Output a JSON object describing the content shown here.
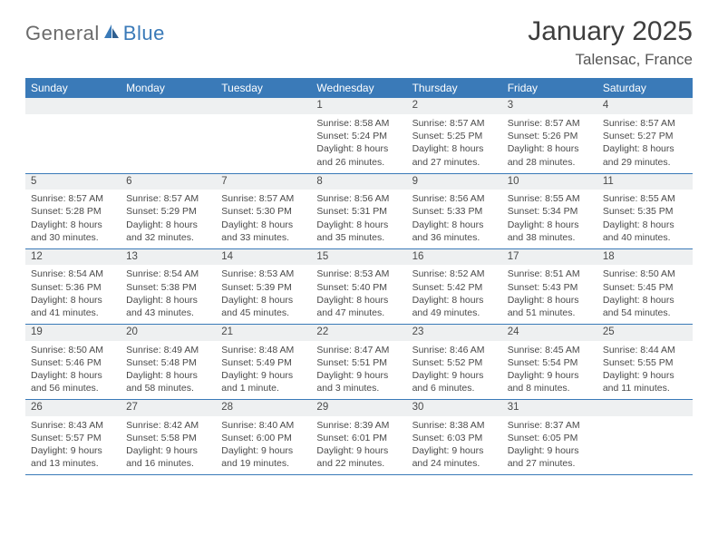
{
  "brand": {
    "text1": "General",
    "text2": "Blue"
  },
  "title": "January 2025",
  "location": "Talensac, France",
  "colors": {
    "header_bg": "#3a7ab8",
    "header_text": "#ffffff",
    "daynum_bg": "#eef0f1",
    "border": "#3a7ab8",
    "body_text": "#4a4a4a",
    "logo_gray": "#6b6b6b",
    "logo_blue": "#3a7ab8",
    "page_bg": "#ffffff"
  },
  "typography": {
    "title_fontsize": 30,
    "location_fontsize": 17,
    "dayheader_fontsize": 12,
    "daynum_fontsize": 11.5,
    "detail_fontsize": 10.5,
    "logo_fontsize": 22
  },
  "day_headers": [
    "Sunday",
    "Monday",
    "Tuesday",
    "Wednesday",
    "Thursday",
    "Friday",
    "Saturday"
  ],
  "weeks": [
    [
      null,
      null,
      null,
      {
        "n": "1",
        "sr": "8:58 AM",
        "ss": "5:24 PM",
        "dl": "8 hours and 26 minutes."
      },
      {
        "n": "2",
        "sr": "8:57 AM",
        "ss": "5:25 PM",
        "dl": "8 hours and 27 minutes."
      },
      {
        "n": "3",
        "sr": "8:57 AM",
        "ss": "5:26 PM",
        "dl": "8 hours and 28 minutes."
      },
      {
        "n": "4",
        "sr": "8:57 AM",
        "ss": "5:27 PM",
        "dl": "8 hours and 29 minutes."
      }
    ],
    [
      {
        "n": "5",
        "sr": "8:57 AM",
        "ss": "5:28 PM",
        "dl": "8 hours and 30 minutes."
      },
      {
        "n": "6",
        "sr": "8:57 AM",
        "ss": "5:29 PM",
        "dl": "8 hours and 32 minutes."
      },
      {
        "n": "7",
        "sr": "8:57 AM",
        "ss": "5:30 PM",
        "dl": "8 hours and 33 minutes."
      },
      {
        "n": "8",
        "sr": "8:56 AM",
        "ss": "5:31 PM",
        "dl": "8 hours and 35 minutes."
      },
      {
        "n": "9",
        "sr": "8:56 AM",
        "ss": "5:33 PM",
        "dl": "8 hours and 36 minutes."
      },
      {
        "n": "10",
        "sr": "8:55 AM",
        "ss": "5:34 PM",
        "dl": "8 hours and 38 minutes."
      },
      {
        "n": "11",
        "sr": "8:55 AM",
        "ss": "5:35 PM",
        "dl": "8 hours and 40 minutes."
      }
    ],
    [
      {
        "n": "12",
        "sr": "8:54 AM",
        "ss": "5:36 PM",
        "dl": "8 hours and 41 minutes."
      },
      {
        "n": "13",
        "sr": "8:54 AM",
        "ss": "5:38 PM",
        "dl": "8 hours and 43 minutes."
      },
      {
        "n": "14",
        "sr": "8:53 AM",
        "ss": "5:39 PM",
        "dl": "8 hours and 45 minutes."
      },
      {
        "n": "15",
        "sr": "8:53 AM",
        "ss": "5:40 PM",
        "dl": "8 hours and 47 minutes."
      },
      {
        "n": "16",
        "sr": "8:52 AM",
        "ss": "5:42 PM",
        "dl": "8 hours and 49 minutes."
      },
      {
        "n": "17",
        "sr": "8:51 AM",
        "ss": "5:43 PM",
        "dl": "8 hours and 51 minutes."
      },
      {
        "n": "18",
        "sr": "8:50 AM",
        "ss": "5:45 PM",
        "dl": "8 hours and 54 minutes."
      }
    ],
    [
      {
        "n": "19",
        "sr": "8:50 AM",
        "ss": "5:46 PM",
        "dl": "8 hours and 56 minutes."
      },
      {
        "n": "20",
        "sr": "8:49 AM",
        "ss": "5:48 PM",
        "dl": "8 hours and 58 minutes."
      },
      {
        "n": "21",
        "sr": "8:48 AM",
        "ss": "5:49 PM",
        "dl": "9 hours and 1 minute."
      },
      {
        "n": "22",
        "sr": "8:47 AM",
        "ss": "5:51 PM",
        "dl": "9 hours and 3 minutes."
      },
      {
        "n": "23",
        "sr": "8:46 AM",
        "ss": "5:52 PM",
        "dl": "9 hours and 6 minutes."
      },
      {
        "n": "24",
        "sr": "8:45 AM",
        "ss": "5:54 PM",
        "dl": "9 hours and 8 minutes."
      },
      {
        "n": "25",
        "sr": "8:44 AM",
        "ss": "5:55 PM",
        "dl": "9 hours and 11 minutes."
      }
    ],
    [
      {
        "n": "26",
        "sr": "8:43 AM",
        "ss": "5:57 PM",
        "dl": "9 hours and 13 minutes."
      },
      {
        "n": "27",
        "sr": "8:42 AM",
        "ss": "5:58 PM",
        "dl": "9 hours and 16 minutes."
      },
      {
        "n": "28",
        "sr": "8:40 AM",
        "ss": "6:00 PM",
        "dl": "9 hours and 19 minutes."
      },
      {
        "n": "29",
        "sr": "8:39 AM",
        "ss": "6:01 PM",
        "dl": "9 hours and 22 minutes."
      },
      {
        "n": "30",
        "sr": "8:38 AM",
        "ss": "6:03 PM",
        "dl": "9 hours and 24 minutes."
      },
      {
        "n": "31",
        "sr": "8:37 AM",
        "ss": "6:05 PM",
        "dl": "9 hours and 27 minutes."
      },
      null
    ]
  ],
  "labels": {
    "sunrise": "Sunrise:",
    "sunset": "Sunset:",
    "daylight": "Daylight:"
  }
}
